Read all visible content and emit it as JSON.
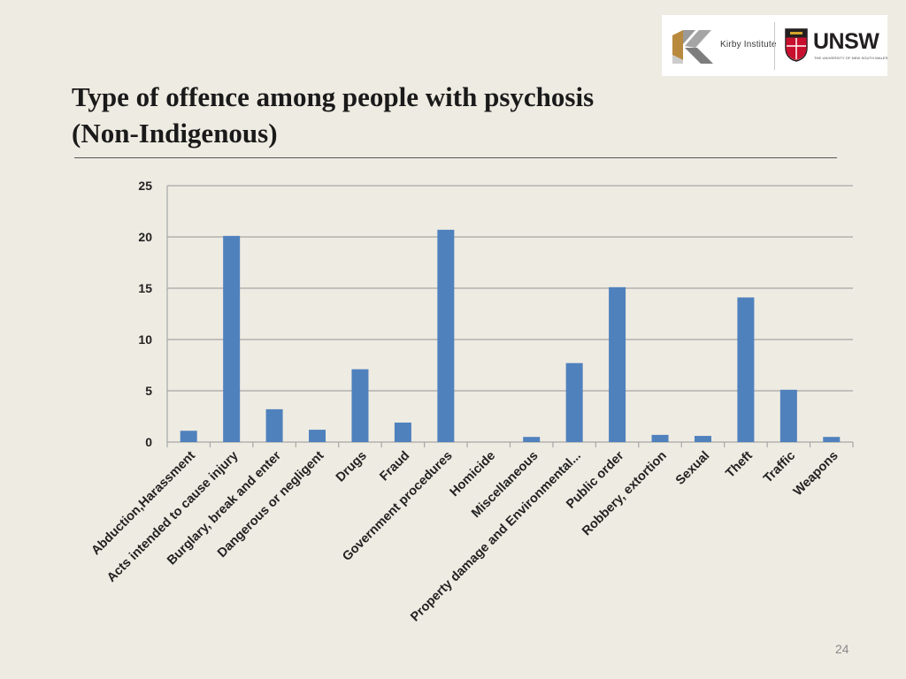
{
  "slide": {
    "title_line1": "Type of offence among people with psychosis",
    "title_line2": "(Non-Indigenous)",
    "page_number": "24"
  },
  "logos": {
    "kirby_text": "Kirby Institute",
    "unsw_text": "UNSW",
    "unsw_subtext": "THE UNIVERSITY OF NEW SOUTH WALES"
  },
  "colors": {
    "bar": "#4f81bd",
    "gridline": "#a6a6a6",
    "background": "#eeebe2"
  },
  "chart_data": {
    "type": "bar",
    "title": "",
    "xlabel": "",
    "ylabel": "",
    "ylim": [
      0,
      25
    ],
    "yticks": [
      0,
      5,
      10,
      15,
      20,
      25
    ],
    "grid": true,
    "legend": "none",
    "categories": [
      "Abduction,Harassment",
      "Acts intended to cause injury",
      "Burglary, break and enter",
      "Dangerous or negligent",
      "Drugs",
      "Fraud",
      "Government procedures",
      "Homicide",
      "Miscellaneous",
      "Property damage and Environmental...",
      "Public order",
      "Robbery, extortion",
      "Sexual",
      "Theft",
      "Traffic",
      "Weapons"
    ],
    "values": [
      1.1,
      20.1,
      3.2,
      1.2,
      7.1,
      1.9,
      20.7,
      0,
      0.5,
      7.7,
      15.1,
      0.7,
      0.6,
      14.1,
      5.1,
      0.5
    ]
  }
}
